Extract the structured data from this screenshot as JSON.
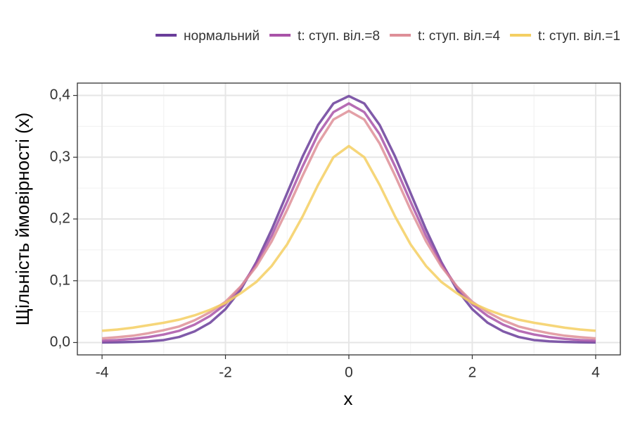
{
  "chart_data": {
    "type": "line",
    "x_label": "x",
    "y_label": "Щільність ймовірності (x)",
    "x": [
      -4,
      -3.75,
      -3.5,
      -3.25,
      -3,
      -2.75,
      -2.5,
      -2.25,
      -2,
      -1.75,
      -1.5,
      -1.25,
      -1,
      -0.75,
      -0.5,
      -0.25,
      0,
      0.25,
      0.5,
      0.75,
      1,
      1.25,
      1.5,
      1.75,
      2,
      2.25,
      2.5,
      2.75,
      3,
      3.25,
      3.5,
      3.75,
      4
    ],
    "series": [
      {
        "name": "нормальний",
        "color": "#6a3d9a",
        "values": [
          0.0001,
          0.0004,
          0.001,
          0.002,
          0.004,
          0.009,
          0.018,
          0.032,
          0.054,
          0.086,
          0.13,
          0.183,
          0.242,
          0.301,
          0.352,
          0.387,
          0.399,
          0.387,
          0.352,
          0.301,
          0.242,
          0.183,
          0.13,
          0.086,
          0.054,
          0.032,
          0.018,
          0.009,
          0.004,
          0.002,
          0.001,
          0.0004,
          0.0001
        ]
      },
      {
        "name": "t: ступ. віл.=8",
        "color": "#a953a8",
        "values": [
          0.0028,
          0.004,
          0.0059,
          0.0088,
          0.013,
          0.019,
          0.029,
          0.043,
          0.062,
          0.09,
          0.127,
          0.173,
          0.228,
          0.285,
          0.337,
          0.373,
          0.387,
          0.373,
          0.337,
          0.285,
          0.228,
          0.173,
          0.127,
          0.09,
          0.062,
          0.043,
          0.029,
          0.019,
          0.013,
          0.0088,
          0.0059,
          0.004,
          0.0028
        ]
      },
      {
        "name": "t: ступ. віл.=4",
        "color": "#de8f98",
        "values": [
          0.0067,
          0.0087,
          0.011,
          0.015,
          0.02,
          0.026,
          0.036,
          0.049,
          0.066,
          0.091,
          0.123,
          0.164,
          0.215,
          0.27,
          0.322,
          0.361,
          0.375,
          0.361,
          0.322,
          0.27,
          0.215,
          0.164,
          0.123,
          0.091,
          0.066,
          0.049,
          0.036,
          0.026,
          0.02,
          0.015,
          0.011,
          0.0087,
          0.0067
        ]
      },
      {
        "name": "t: ступ. віл.=1",
        "color": "#f4cf62",
        "values": [
          0.019,
          0.021,
          0.024,
          0.028,
          0.032,
          0.037,
          0.044,
          0.053,
          0.064,
          0.08,
          0.098,
          0.124,
          0.159,
          0.204,
          0.255,
          0.3,
          0.318,
          0.3,
          0.255,
          0.204,
          0.159,
          0.124,
          0.098,
          0.08,
          0.064,
          0.053,
          0.044,
          0.037,
          0.032,
          0.028,
          0.024,
          0.021,
          0.019
        ]
      }
    ],
    "xlim": [
      -4.4,
      4.4
    ],
    "xticks": [
      -4,
      -2,
      0,
      2,
      4
    ],
    "ylim": [
      -0.02,
      0.42
    ],
    "yticks": [
      {
        "value": 0,
        "label": "0,0"
      },
      {
        "value": 0.1,
        "label": "0,1"
      },
      {
        "value": 0.2,
        "label": "0,2"
      },
      {
        "value": 0.3,
        "label": "0,3"
      },
      {
        "value": 0.4,
        "label": "0,4"
      }
    ],
    "grid": true,
    "legend": "top"
  }
}
